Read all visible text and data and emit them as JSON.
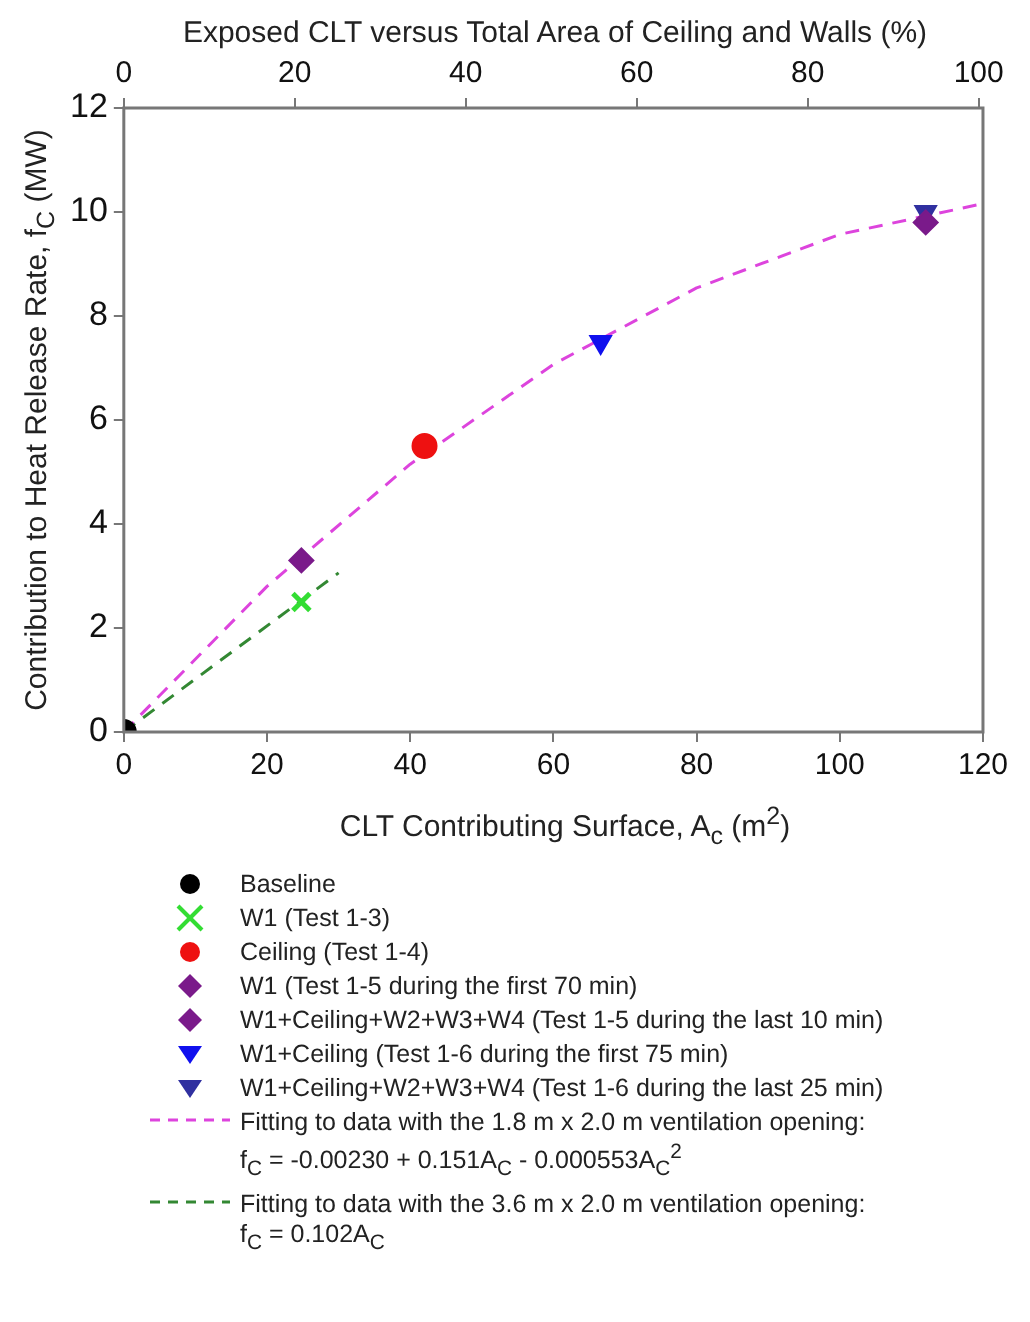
{
  "chart_data": {
    "type": "scatter",
    "x2label": "Exposed CLT versus Total Area of Ceiling and Walls (%)",
    "xlabel": "CLT Contributing Surface, A$_{c}$ (m$^{2}$)",
    "ylabel": "Contribution to Heat Release Rate, f$_{C}$ (MW)",
    "xlim": [
      0,
      120
    ],
    "xticks": [
      0,
      20,
      40,
      60,
      80,
      100,
      120
    ],
    "ylim": [
      0,
      12
    ],
    "yticks": [
      0,
      2,
      4,
      6,
      8,
      10,
      12
    ],
    "x2lim": [
      0,
      100.5
    ],
    "x2ticks": [
      0,
      20,
      40,
      60,
      80,
      100
    ],
    "grid": false,
    "legend": "bottom",
    "series": [
      {
        "name": "Baseline",
        "color": "#000000",
        "marker": "circle",
        "x": [
          0
        ],
        "values": [
          0
        ]
      },
      {
        "name": "W1 (Test 1-3)",
        "color": "#33dd33",
        "marker": "cross",
        "x": [
          24.8
        ],
        "values": [
          2.5
        ]
      },
      {
        "name": "Ceiling (Test 1-4)",
        "color": "#ee1111",
        "marker": "circle",
        "x": [
          42
        ],
        "values": [
          5.5
        ]
      },
      {
        "name": "W1 (Test 1-5 during the first 70 min)",
        "color": "#7a1a8a",
        "marker": "diamond",
        "x": [
          24.8
        ],
        "values": [
          3.3
        ]
      },
      {
        "name": "W1+Ceiling+W2+W3+W4 (Test 1-5 during the last 10 min)",
        "color": "#7a1a8a",
        "marker": "diamond",
        "x": [
          112
        ],
        "values": [
          9.8
        ]
      },
      {
        "name": "W1+Ceiling (Test 1-6 during the first 75 min)",
        "color": "#1010ee",
        "marker": "triangle",
        "x": [
          66.6
        ],
        "values": [
          7.5
        ]
      },
      {
        "name": "W1+Ceiling+W2+W3+W4 (Test 1-6 during the last 25 min)",
        "color": "#3030a0",
        "marker": "triangle",
        "x": [
          112
        ],
        "values": [
          10
        ]
      },
      {
        "name": "Fitting to data with the 1.8 m x 2.0 m ventilation opening:\nf$_{C}$ = -0.00230 + 0.151A$_{C}$ - 0.000553A$_{C}$$^{2}$",
        "type": "line",
        "line_style": "dashed",
        "marker": "none",
        "color": "#dd44dd",
        "x": [
          0,
          20,
          40,
          60,
          80,
          100,
          120
        ],
        "values": [
          0,
          2.8,
          5.15,
          7.07,
          8.54,
          9.57,
          10.16
        ]
      },
      {
        "name": "Fitting to data with the 3.6 m x 2.0 m ventilation opening:\nf$_{C}$ = 0.102A$_{C}$",
        "type": "line",
        "line_style": "dashed",
        "marker": "none",
        "color": "#338833",
        "x": [
          0,
          30
        ],
        "values": [
          0,
          3.06
        ]
      }
    ]
  }
}
